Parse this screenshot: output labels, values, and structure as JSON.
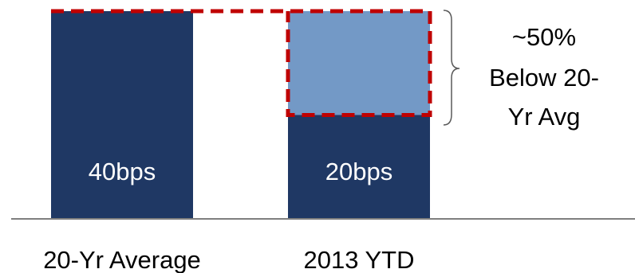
{
  "chart_data": {
    "type": "bar",
    "categories": [
      "20-Yr Average",
      "2013 YTD"
    ],
    "values": [
      40,
      20
    ],
    "data_labels": [
      "40bps",
      "20bps"
    ],
    "gap_to_average": 20,
    "ylim": [
      0,
      40
    ],
    "annotation": [
      "~50%",
      "Below 20-",
      "Yr Avg"
    ],
    "colors": {
      "bar": "#1f3864",
      "gap_fill": "#7399c6",
      "dashed_outline": "#c00000",
      "bracket": "#595959",
      "baseline": "#7f7f7f"
    }
  }
}
